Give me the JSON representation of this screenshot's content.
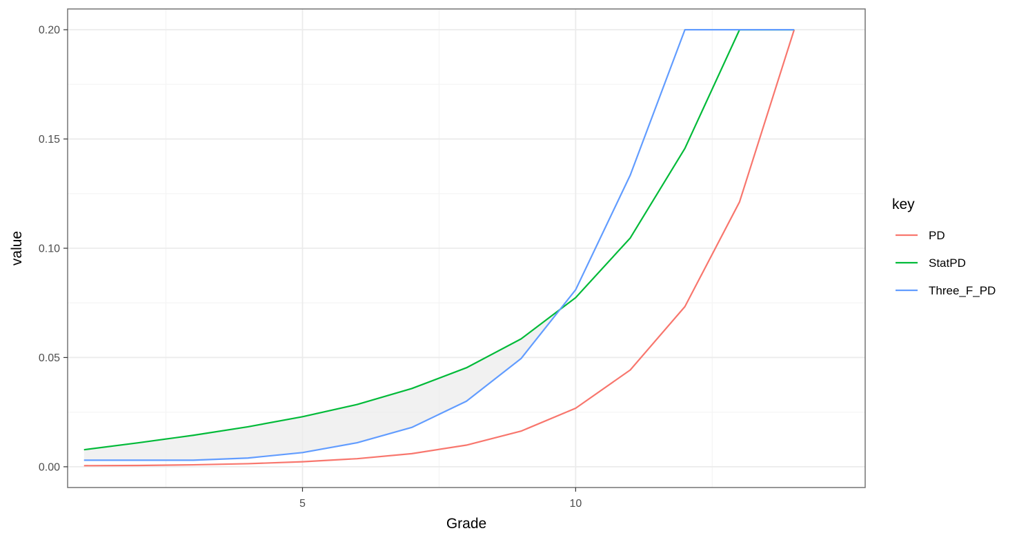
{
  "chart_data": {
    "type": "line",
    "title": "",
    "xlabel": "Grade",
    "ylabel": "value",
    "xlim": [
      0.7,
      15.3
    ],
    "ylim": [
      -0.0095,
      0.2095
    ],
    "x_ticks": [
      5,
      10
    ],
    "x_tick_labels": [
      "5",
      "10"
    ],
    "x_minor_ticks": [
      2.5,
      7.5,
      12.5
    ],
    "y_ticks": [
      0.0,
      0.05,
      0.1,
      0.15,
      0.2
    ],
    "y_tick_labels": [
      "0.00",
      "0.05",
      "0.10",
      "0.15",
      "0.20"
    ],
    "y_minor_ticks": [
      0.025,
      0.075,
      0.125,
      0.175
    ],
    "grid": true,
    "legend": {
      "title": "key",
      "position": "right",
      "entries": [
        "PD",
        "StatPD",
        "Three_F_PD"
      ]
    },
    "x": [
      1,
      2,
      3,
      4,
      5,
      6,
      7,
      8,
      9,
      10,
      11,
      12,
      13,
      14
    ],
    "series": [
      {
        "name": "PD",
        "color": "#F8766D",
        "values": [
          0.0005,
          0.0006,
          0.0009,
          0.0014,
          0.0023,
          0.0037,
          0.006,
          0.0099,
          0.0163,
          0.0268,
          0.0443,
          0.0733,
          0.1212,
          0.2
        ]
      },
      {
        "name": "StatPD",
        "color": "#00BA38",
        "values": [
          0.0078,
          0.011,
          0.0144,
          0.0183,
          0.0229,
          0.0285,
          0.0358,
          0.0453,
          0.0585,
          0.0774,
          0.1047,
          0.1457,
          0.2,
          0.2
        ]
      },
      {
        "name": "Three_F_PD",
        "color": "#619CFF",
        "values": [
          0.003,
          0.003,
          0.003,
          0.004,
          0.0065,
          0.011,
          0.018,
          0.03,
          0.0495,
          0.081,
          0.1335,
          0.2,
          0.2,
          0.2
        ]
      }
    ],
    "band": {
      "between": [
        "StatPD",
        "Three_F_PD"
      ],
      "x": [
        1,
        2,
        3,
        4,
        5,
        6,
        7,
        8,
        9,
        9.75
      ],
      "fill": "#ebebeb"
    },
    "colors": {
      "panel_border": "#737373",
      "grid_major": "#ebebeb",
      "grid_minor": "#f4f4f4",
      "tick": "#333333"
    }
  }
}
